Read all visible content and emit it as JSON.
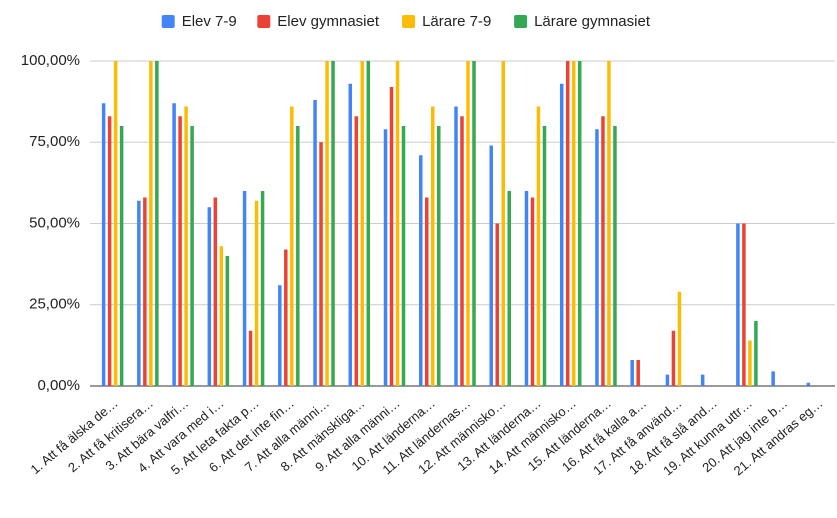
{
  "chart_data": {
    "type": "bar",
    "categories": [
      "1. Att få älska de…",
      "2. Att få kritisera…",
      "3. Att bära valfri…",
      "4. Att vara med i…",
      "5. Att leta fakta p…",
      "6. Att det inte fin…",
      "7. Att alla männi…",
      "8. Att mänskliga…",
      "9. Att alla männi…",
      "10. Att länderna…",
      "11. Att ländernas…",
      "12. Att människo…",
      "13. Att länderna…",
      "14. Att människo…",
      "15. Att länderna…",
      "16. Att få kalla a…",
      "17. Att få använd…",
      "18. Att få slå and…",
      "19. Att kunna uttr…",
      "20. Att jag inte b…",
      "21. Att andras eg…"
    ],
    "series": [
      {
        "name": "Elev 7-9",
        "color": "#4285f4",
        "values": [
          87,
          57,
          87,
          55,
          60,
          31,
          88,
          93,
          79,
          71,
          86,
          74,
          60,
          93,
          79,
          8,
          3.5,
          3.5,
          50,
          4.5,
          1
        ]
      },
      {
        "name": "Elev gymnasiet",
        "color": "#ea4335",
        "values": [
          83,
          58,
          83,
          58,
          17,
          42,
          75,
          83,
          92,
          58,
          83,
          50,
          58,
          100,
          83,
          8,
          17,
          0,
          50,
          0,
          0
        ]
      },
      {
        "name": "Lärare 7-9",
        "color": "#fbbc04",
        "values": [
          100,
          100,
          86,
          43,
          57,
          86,
          100,
          100,
          100,
          86,
          100,
          100,
          86,
          100,
          100,
          0,
          29,
          0,
          14,
          0,
          0
        ]
      },
      {
        "name": "Lärare gymnasiet",
        "color": "#34a853",
        "values": [
          80,
          100,
          80,
          40,
          60,
          80,
          100,
          100,
          80,
          80,
          100,
          60,
          80,
          100,
          80,
          0,
          0,
          0,
          20,
          0,
          0
        ]
      }
    ],
    "ylim": [
      0,
      100
    ],
    "yticks": [
      {
        "value": 0,
        "label": "0,00%"
      },
      {
        "value": 25,
        "label": "25,00%"
      },
      {
        "value": 50,
        "label": "50,00%"
      },
      {
        "value": 75,
        "label": "75,00%"
      },
      {
        "value": 100,
        "label": "100,00%"
      }
    ],
    "grid": true,
    "legend": "top"
  }
}
